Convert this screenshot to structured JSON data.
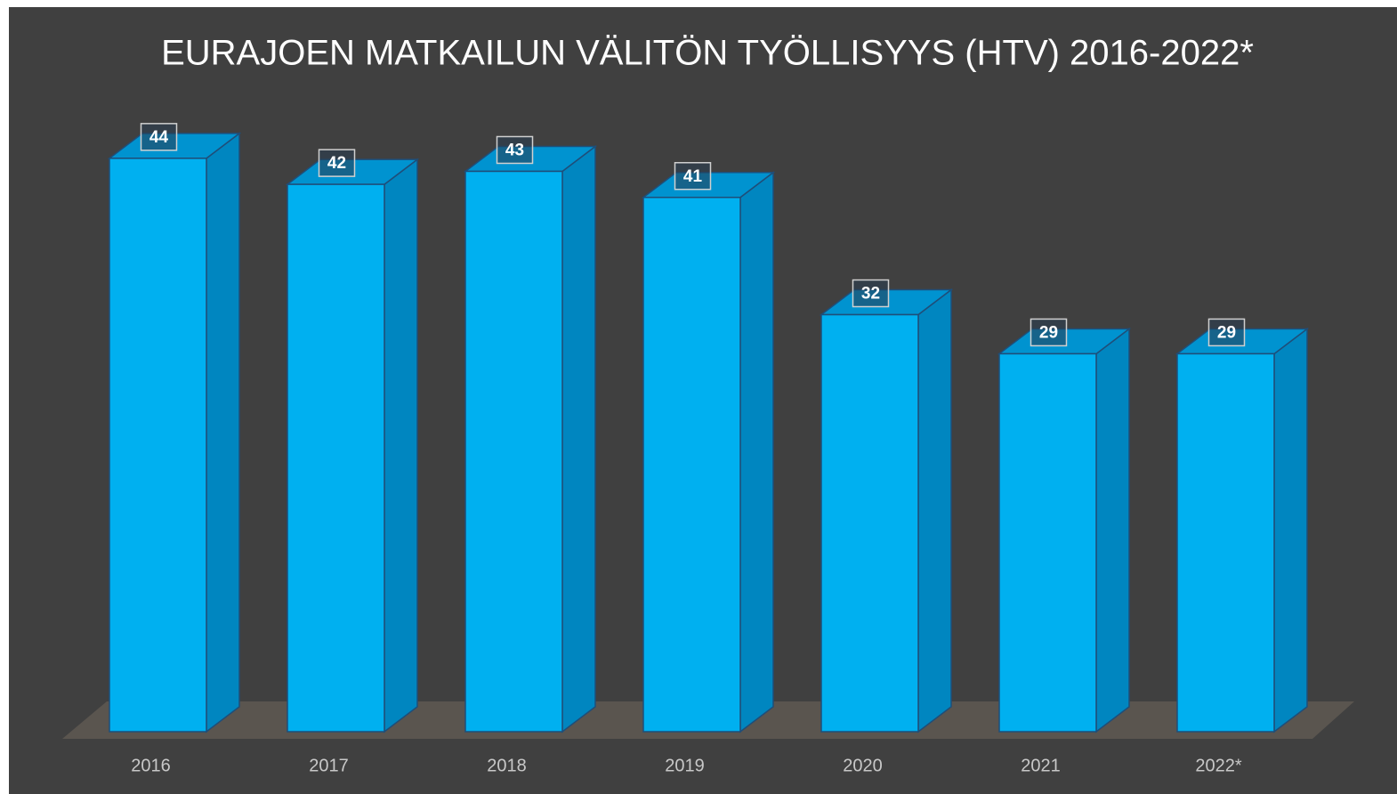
{
  "chart_data": {
    "type": "bar3d",
    "title": "EURAJOEN MATKAILUN VÄLITÖN TYÖLLISYYS (HTV) 2016-2022*",
    "categories": [
      "2016",
      "2017",
      "2018",
      "2019",
      "2020",
      "2021",
      "2022*"
    ],
    "values": [
      44,
      42,
      43,
      41,
      32,
      29,
      29
    ],
    "color": "#00b0f0"
  }
}
